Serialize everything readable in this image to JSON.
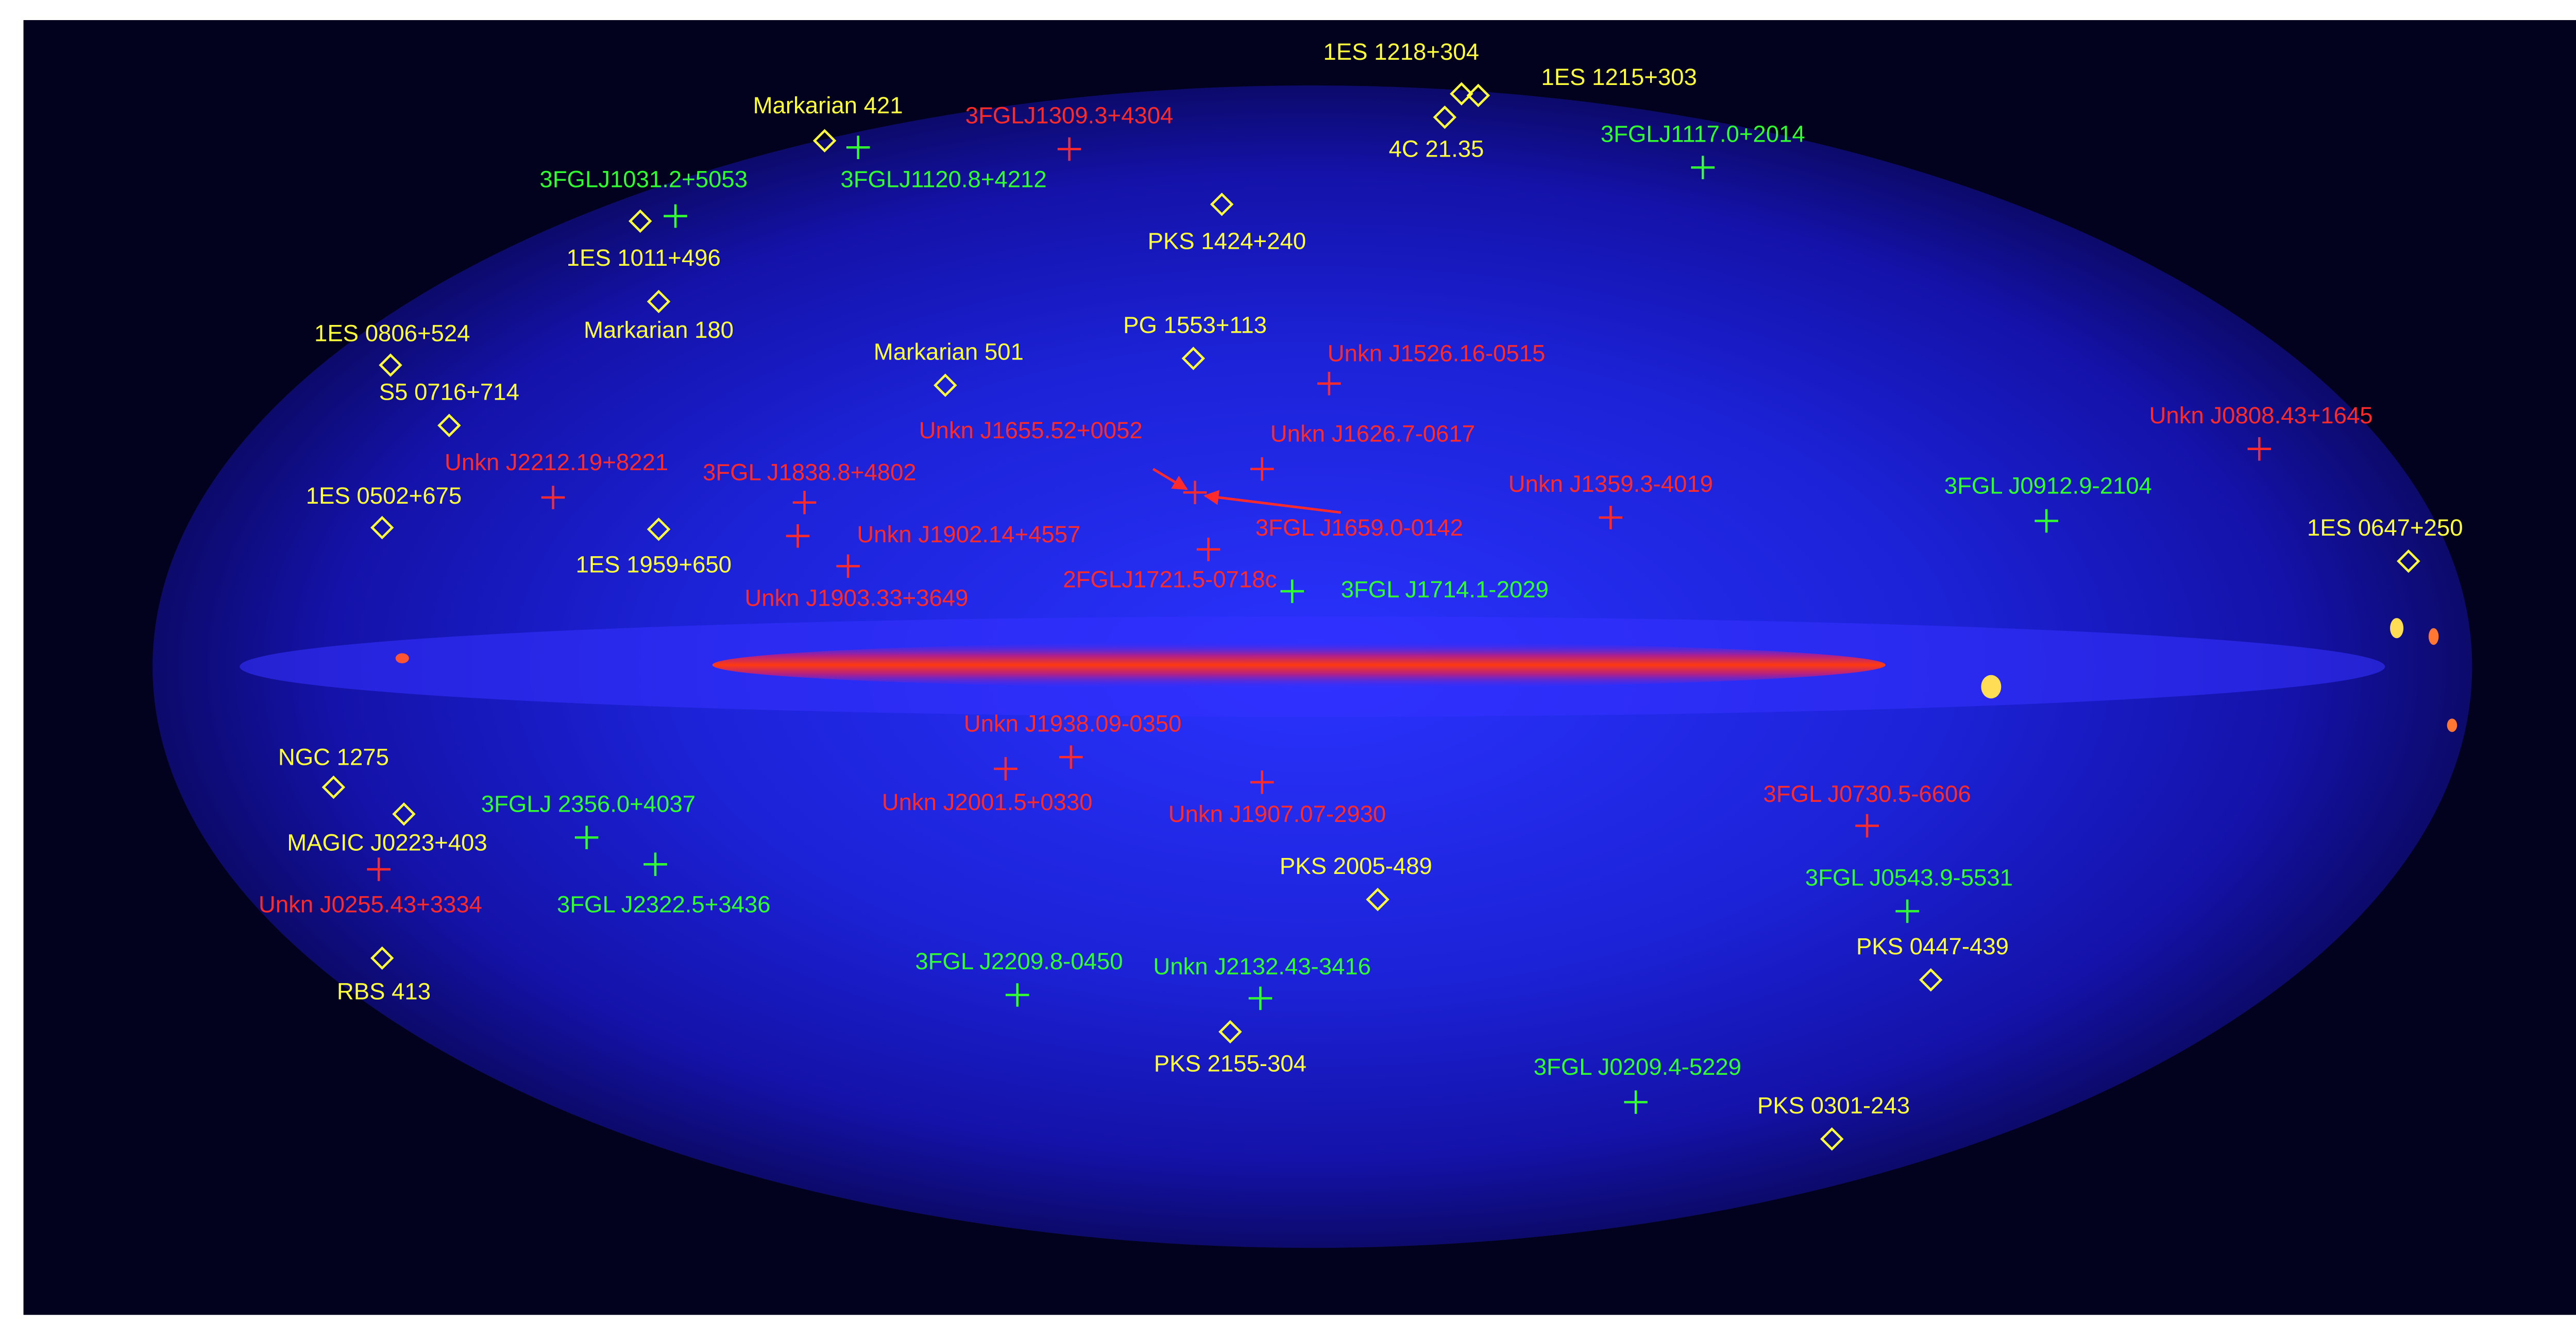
{
  "labels": [
    "1ES 1218+304",
    "1ES 1215+303",
    "4C 21.35",
    "Markarian 421",
    "PKS 1424+240",
    "1ES 1011+496",
    "Markarian 180",
    "1ES 0806+524",
    "Markarian 501",
    "PG 1553+113",
    "S5 0716+714",
    "1ES 0502+675",
    "1ES 1959+650",
    "1ES 0647+250",
    "NGC 1275",
    "MAGIC J0223+403",
    "RBS 413",
    "PKS 2005-489",
    "PKS 0447-439",
    "PKS 2155-304",
    "PKS 0301-243",
    "3FGLJ1309.3+4304",
    "Unkn J1526.16-0515",
    "Unkn J1655.52+0052",
    "Unkn J1626.7-0617",
    "Unkn J0808.43+1645",
    "Unkn J2212.19+8221",
    "3FGL J1838.8+4802",
    "Unkn J1359.3-4019",
    "3FGL J1659.0-0142",
    "Unkn J1902.14+4557",
    "2FGLJ1721.5-0718c",
    "Unkn J1903.33+3649",
    "Unkn J1938.09-0350",
    "Unkn J2001.5+0330",
    "Unkn J1907.07-2930",
    "3FGL J0730.5-6606",
    "Unkn J0255.43+3334",
    "3FGLJ1117.0+2014",
    "3FGLJ1031.2+5053",
    "3FGLJ1120.8+4212",
    "3FGL J0912.9-2104",
    "3FGL J1714.1-2029",
    "3FGLJ 2356.0+4037",
    "3FGL J2322.5+3436",
    "3FGL J0543.9-5531",
    "3FGL J2209.8-0450",
    "Unkn J2132.43-3416",
    "3FGL J0209.4-5229"
  ]
}
